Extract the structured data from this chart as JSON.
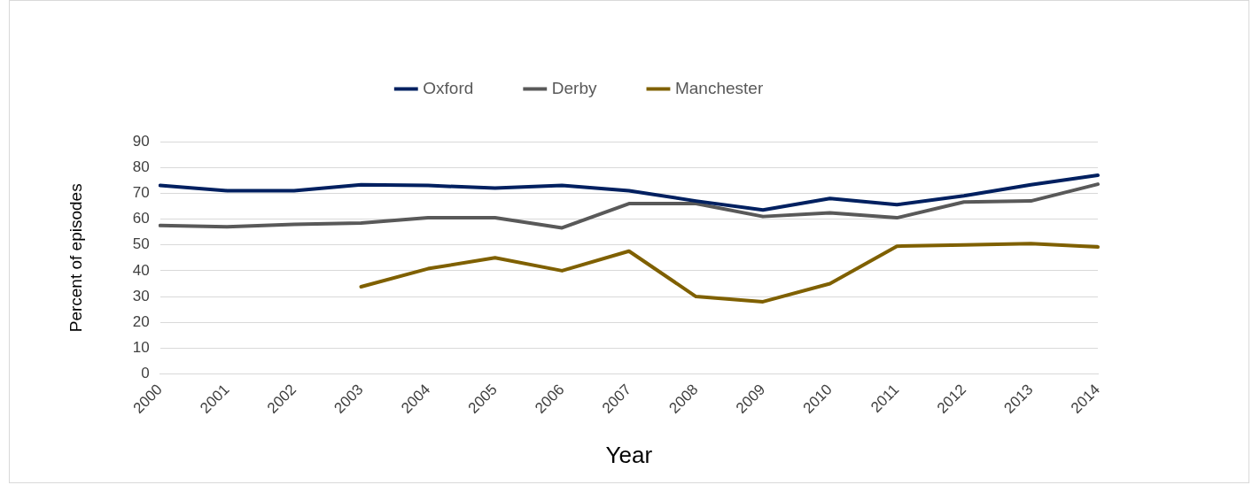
{
  "chart_data": {
    "type": "line",
    "xlabel": "Year",
    "ylabel": "Percent of episodes",
    "categories": [
      "2000",
      "2001",
      "2002",
      "2003",
      "2004",
      "2005",
      "2006",
      "2007",
      "2008",
      "2009",
      "2010",
      "2011",
      "2012",
      "2013",
      "2014"
    ],
    "series": [
      {
        "name": "Oxford",
        "color": "#002060",
        "values": [
          73,
          71,
          71,
          73.3,
          73,
          72,
          73,
          71,
          67,
          63.5,
          68,
          65.6,
          69,
          73.3,
          77
        ]
      },
      {
        "name": "Derby",
        "color": "#595959",
        "values": [
          57.5,
          57,
          58,
          58.5,
          60.5,
          60.5,
          56.6,
          66,
          66,
          61,
          62.4,
          60.5,
          66.6,
          67,
          73.5
        ]
      },
      {
        "name": "Manchester",
        "color": "#7f6000",
        "values": [
          null,
          null,
          null,
          33.8,
          40.8,
          45,
          40,
          47.6,
          30,
          28,
          35,
          49.5,
          50,
          50.5,
          49.2
        ]
      }
    ],
    "ylim": [
      0,
      90
    ],
    "yticks": [
      0,
      10,
      20,
      30,
      40,
      50,
      60,
      70,
      80,
      90
    ],
    "grid": "y",
    "legend": "top",
    "marker": "none",
    "line_style": "solid"
  }
}
